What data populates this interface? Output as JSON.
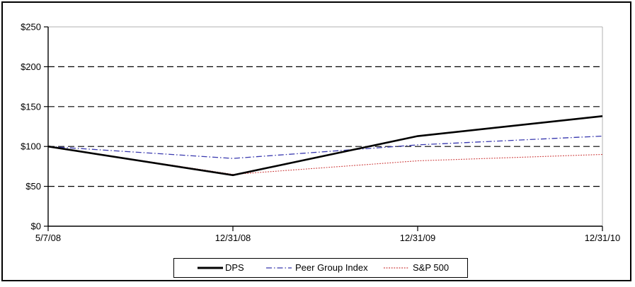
{
  "chart_data": {
    "type": "line",
    "x_labels": [
      "5/7/08",
      "12/31/08",
      "12/31/09",
      "12/31/10"
    ],
    "y_ticks": [
      {
        "value": 0,
        "label": "$0"
      },
      {
        "value": 50,
        "label": "$50"
      },
      {
        "value": 100,
        "label": "$100"
      },
      {
        "value": 150,
        "label": "$150"
      },
      {
        "value": 200,
        "label": "$200"
      },
      {
        "value": 250,
        "label": "$250"
      }
    ],
    "ylim": [
      0,
      250
    ],
    "grid": "horizontal-dashed",
    "legend_position": "bottom",
    "series": [
      {
        "name": "DPS",
        "values": [
          100,
          64,
          113,
          138
        ],
        "color": "#000000",
        "line_style": "solid",
        "thickness": 2.6
      },
      {
        "name": "Peer Group Index",
        "values": [
          100,
          85,
          102,
          113
        ],
        "color": "#3838ae",
        "line_style": "dash-dot",
        "thickness": 1.3
      },
      {
        "name": "S&P 500",
        "values": [
          100,
          65,
          82,
          90
        ],
        "color": "#cc3a3a",
        "line_style": "dotted",
        "thickness": 1.1
      }
    ],
    "colors": {
      "axis": "#000000",
      "gridline": "#000000",
      "plot_border": "#b2b2b2",
      "background": "#ffffff"
    }
  }
}
